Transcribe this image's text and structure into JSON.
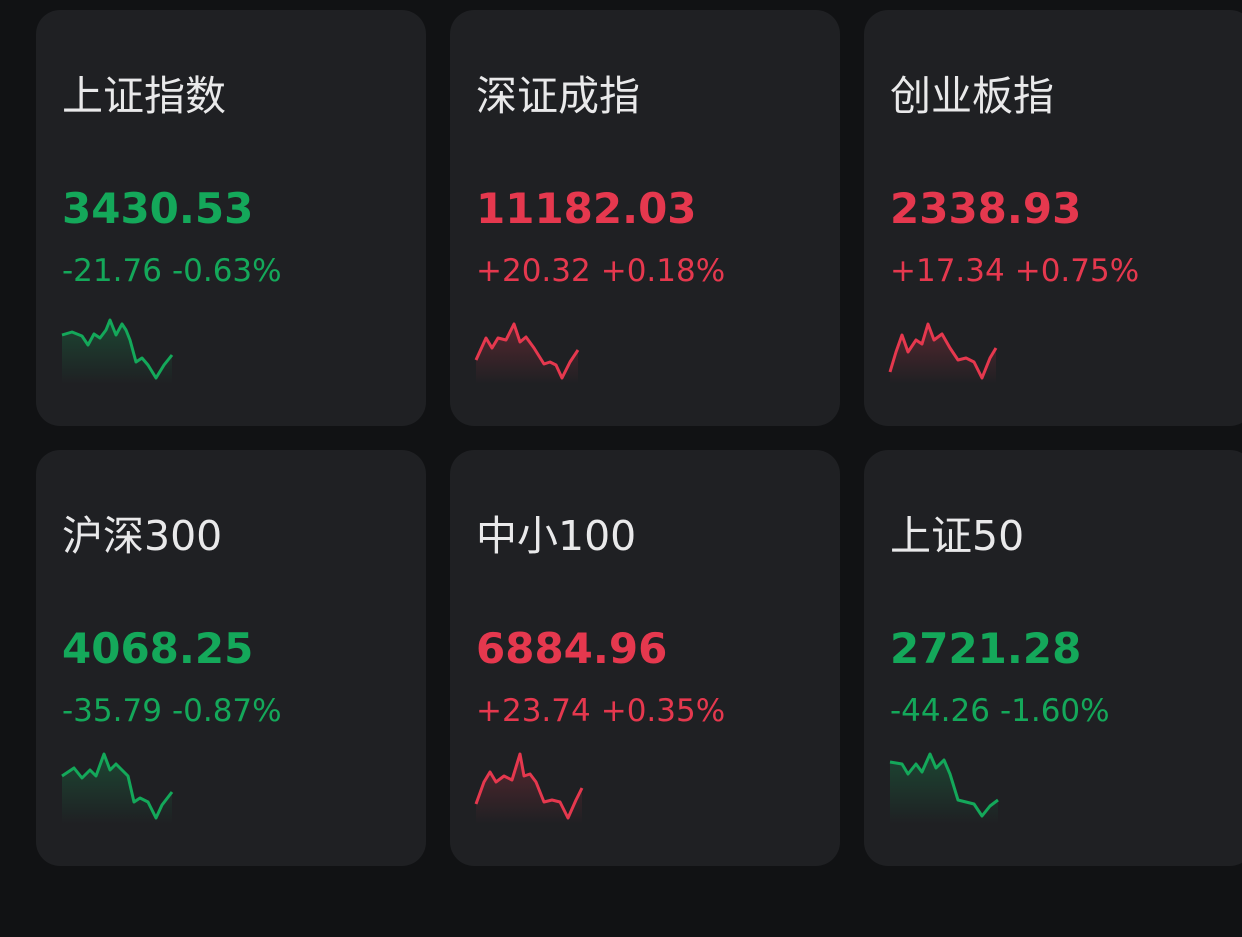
{
  "colors": {
    "up": "#e5384e",
    "down": "#14a85a",
    "card_bg": "#1f2023",
    "page_bg": "#111214",
    "text": "#e9e9ea"
  },
  "indices": [
    {
      "name": "上证指数",
      "price": "3430.53",
      "change": "-21.76",
      "percent": "-0.63%",
      "trend": "down"
    },
    {
      "name": "深证成指",
      "price": "11182.03",
      "change": "+20.32",
      "percent": "+0.18%",
      "trend": "up"
    },
    {
      "name": "创业板指",
      "price": "2338.93",
      "change": "+17.34",
      "percent": "+0.75%",
      "trend": "up"
    },
    {
      "name": "沪深300",
      "price": "4068.25",
      "change": "-35.79",
      "percent": "-0.87%",
      "trend": "down"
    },
    {
      "name": "中小100",
      "price": "6884.96",
      "change": "+23.74",
      "percent": "+0.35%",
      "trend": "up"
    },
    {
      "name": "上证50",
      "price": "2721.28",
      "change": "-44.26",
      "percent": "-1.60%",
      "trend": "down"
    }
  ]
}
